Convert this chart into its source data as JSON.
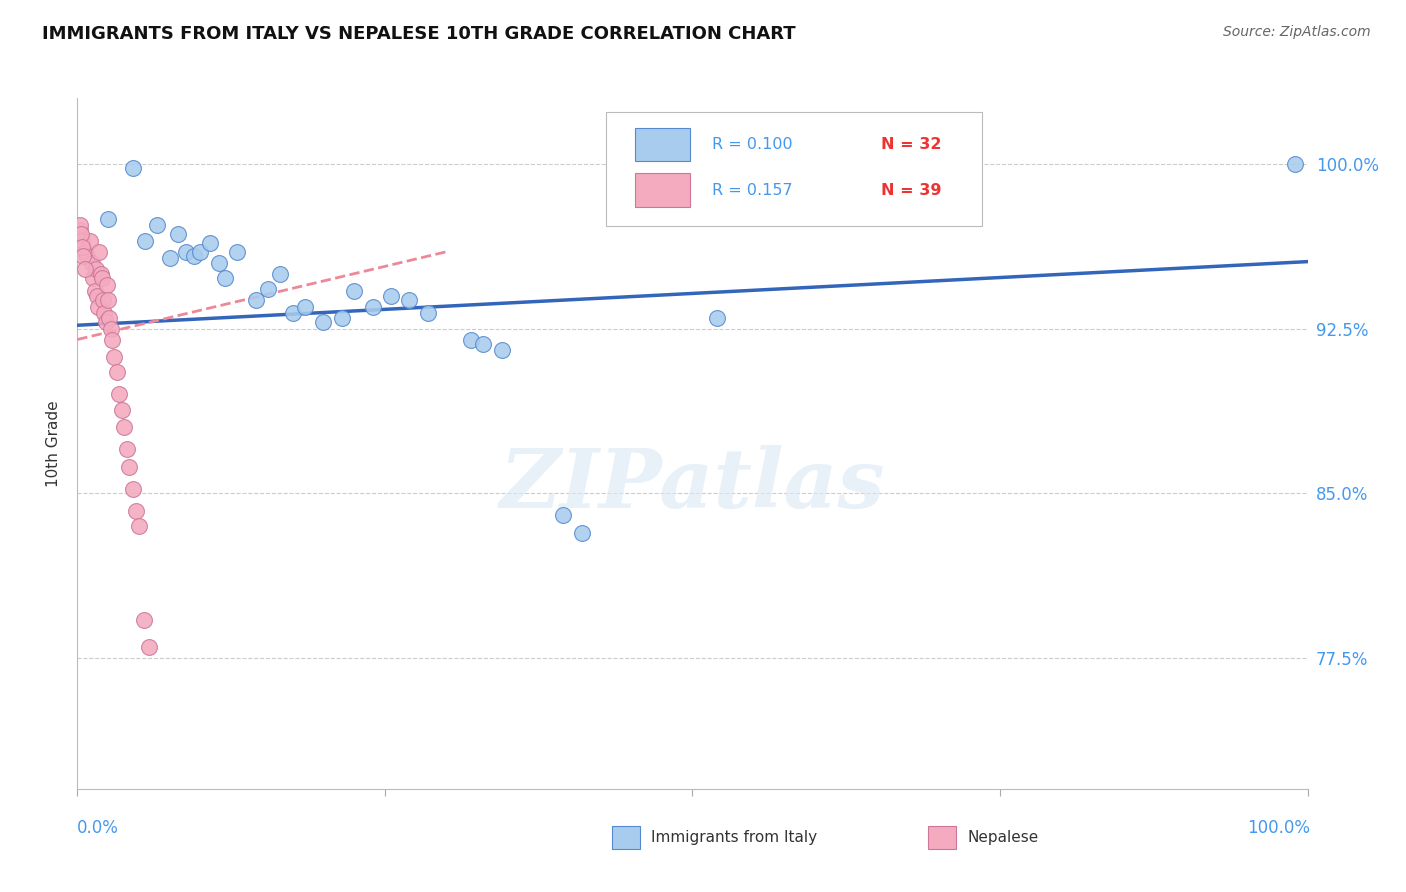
{
  "title": "IMMIGRANTS FROM ITALY VS NEPALESE 10TH GRADE CORRELATION CHART",
  "source_text": "Source: ZipAtlas.com",
  "ylabel": "10th Grade",
  "y_tick_vals": [
    0.775,
    0.85,
    0.925,
    1.0
  ],
  "y_tick_labels": [
    "77.5%",
    "85.0%",
    "92.5%",
    "100.0%"
  ],
  "xlim": [
    0.0,
    1.0
  ],
  "ylim": [
    0.715,
    1.03
  ],
  "blue_R": 0.1,
  "blue_N": 32,
  "pink_R": 0.157,
  "pink_N": 39,
  "blue_color": "#A8CCEE",
  "pink_color": "#F4AABF",
  "blue_edge_color": "#5588CC",
  "pink_edge_color": "#CC7799",
  "blue_line_color": "#3366BB",
  "pink_line_color": "#EE8899",
  "legend_label_blue": "Immigrants from Italy",
  "legend_label_pink": "Nepalese",
  "watermark_text": "ZIPatlas",
  "blue_x": [
    0.025,
    0.045,
    0.055,
    0.065,
    0.075,
    0.082,
    0.088,
    0.095,
    0.1,
    0.108,
    0.115,
    0.12,
    0.13,
    0.145,
    0.155,
    0.165,
    0.175,
    0.185,
    0.2,
    0.215,
    0.225,
    0.24,
    0.255,
    0.27,
    0.285,
    0.32,
    0.33,
    0.345,
    0.395,
    0.41,
    0.52,
    0.99
  ],
  "blue_y": [
    0.975,
    0.998,
    0.965,
    0.972,
    0.957,
    0.968,
    0.96,
    0.958,
    0.96,
    0.964,
    0.955,
    0.948,
    0.96,
    0.938,
    0.943,
    0.95,
    0.932,
    0.935,
    0.928,
    0.93,
    0.942,
    0.935,
    0.94,
    0.938,
    0.932,
    0.92,
    0.918,
    0.915,
    0.84,
    0.832,
    0.93,
    1.0
  ],
  "pink_x": [
    0.002,
    0.004,
    0.006,
    0.008,
    0.01,
    0.012,
    0.013,
    0.014,
    0.015,
    0.016,
    0.017,
    0.018,
    0.019,
    0.02,
    0.021,
    0.022,
    0.023,
    0.024,
    0.025,
    0.026,
    0.027,
    0.028,
    0.03,
    0.032,
    0.034,
    0.036,
    0.038,
    0.04,
    0.042,
    0.045,
    0.048,
    0.05,
    0.054,
    0.058,
    0.002,
    0.003,
    0.004,
    0.005,
    0.006
  ],
  "pink_y": [
    0.97,
    0.965,
    0.96,
    0.958,
    0.965,
    0.955,
    0.948,
    0.942,
    0.952,
    0.94,
    0.935,
    0.96,
    0.95,
    0.948,
    0.938,
    0.932,
    0.928,
    0.945,
    0.938,
    0.93,
    0.925,
    0.92,
    0.912,
    0.905,
    0.895,
    0.888,
    0.88,
    0.87,
    0.862,
    0.852,
    0.842,
    0.835,
    0.792,
    0.78,
    0.972,
    0.968,
    0.962,
    0.958,
    0.952
  ],
  "blue_line_x0": 0.0,
  "blue_line_x1": 1.0,
  "blue_line_y0": 0.9265,
  "blue_line_y1": 0.9555,
  "pink_line_x0": 0.0,
  "pink_line_x1": 0.3,
  "pink_line_y0": 0.92,
  "pink_line_y1": 0.96
}
